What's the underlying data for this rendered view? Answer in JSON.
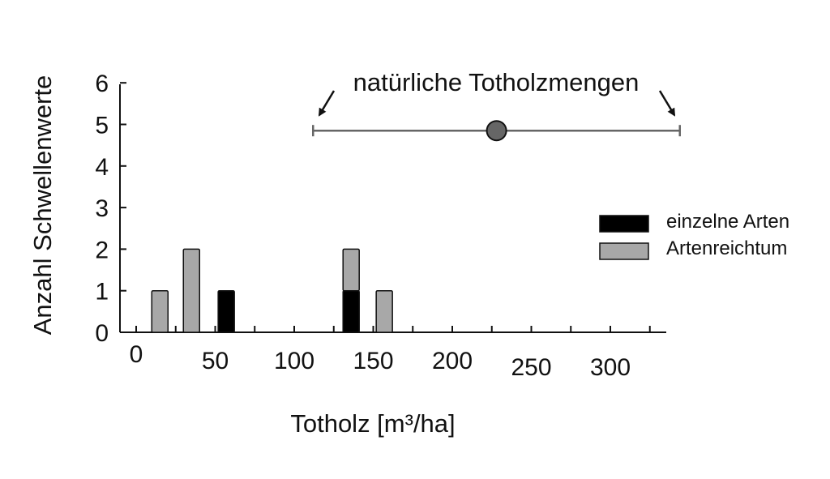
{
  "chart_data": {
    "type": "bar",
    "stacked": true,
    "xlabel": "Totholz [m³/ha]",
    "ylabel": "Anzahl Schwellenwerte",
    "xlim": [
      -10,
      340
    ],
    "ylim": [
      0,
      6
    ],
    "xticks": [
      "0",
      "50",
      "100",
      "150",
      "200",
      "250",
      "300"
    ],
    "yticks": [
      "0",
      "1",
      "2",
      "3",
      "4",
      "5",
      "6"
    ],
    "series": [
      {
        "name": "einzelne Arten",
        "color": "#000000",
        "points": [
          {
            "x": 57,
            "y": 1
          },
          {
            "x": 136,
            "y": 1
          }
        ]
      },
      {
        "name": "Artenreichtum",
        "color": "#a8a8a8",
        "points": [
          {
            "x": 15,
            "y": 1
          },
          {
            "x": 35,
            "y": 2
          },
          {
            "x": 136,
            "y": 1
          },
          {
            "x": 157,
            "y": 1
          }
        ]
      }
    ],
    "annotation": {
      "label": "natürliche Totholzmengen",
      "range": [
        115,
        345
      ],
      "center": 228,
      "y": 4.85,
      "line_color": "#666666",
      "marker_color": "#666666"
    },
    "legend": {
      "position": "right",
      "entries": [
        "einzelne Arten",
        "Artenreichtum"
      ]
    },
    "grid": false
  }
}
